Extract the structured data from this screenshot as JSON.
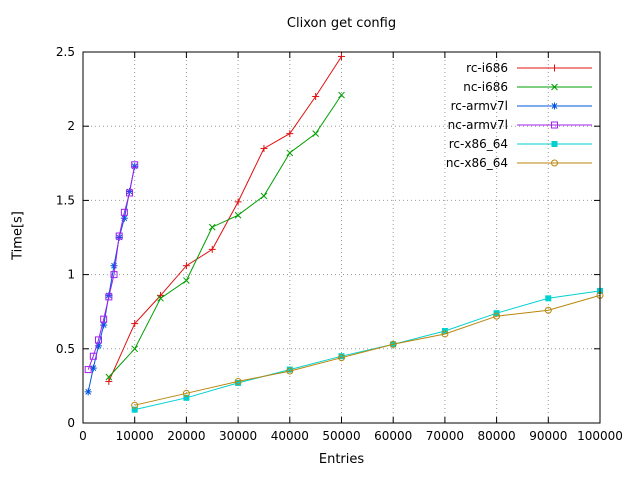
{
  "chart_data": {
    "type": "line",
    "title": "Clixon get config",
    "xlabel": "Entries",
    "ylabel": "Time[s]",
    "xlim": [
      0,
      100000
    ],
    "ylim": [
      0,
      2.5
    ],
    "xticks": [
      0,
      10000,
      20000,
      30000,
      40000,
      50000,
      60000,
      70000,
      80000,
      90000,
      100000
    ],
    "yticks": [
      0,
      0.5,
      1,
      1.5,
      2,
      2.5
    ],
    "grid": true,
    "legend_position": "top-right-inside",
    "series": [
      {
        "name": "rc-i686",
        "color": "#e01010",
        "marker": "plus",
        "x": [
          5000,
          10000,
          15000,
          20000,
          25000,
          30000,
          35000,
          40000,
          45000,
          50000
        ],
        "y": [
          0.28,
          0.67,
          0.86,
          1.06,
          1.17,
          1.49,
          1.85,
          1.95,
          2.2,
          2.47
        ]
      },
      {
        "name": "nc-i686",
        "color": "#009e00",
        "marker": "cross",
        "x": [
          5000,
          10000,
          15000,
          20000,
          25000,
          30000,
          35000,
          40000,
          45000,
          50000
        ],
        "y": [
          0.31,
          0.5,
          0.84,
          0.96,
          1.32,
          1.4,
          1.53,
          1.82,
          1.95,
          2.21
        ]
      },
      {
        "name": "rc-armv7l",
        "color": "#0055dd",
        "marker": "asterisk",
        "x": [
          1000,
          2000,
          3000,
          4000,
          5000,
          6000,
          7000,
          8000,
          9000,
          10000
        ],
        "y": [
          0.21,
          0.37,
          0.52,
          0.66,
          0.86,
          1.06,
          1.25,
          1.38,
          1.56,
          1.73
        ]
      },
      {
        "name": "nc-armv7l",
        "color": "#a020f0",
        "marker": "square-open",
        "x": [
          1000,
          2000,
          3000,
          4000,
          5000,
          6000,
          7000,
          8000,
          9000,
          10000
        ],
        "y": [
          0.36,
          0.45,
          0.56,
          0.7,
          0.85,
          1.0,
          1.26,
          1.42,
          1.55,
          1.74
        ]
      },
      {
        "name": "rc-x86_64",
        "color": "#00d0d0",
        "marker": "square-filled",
        "x": [
          10000,
          20000,
          30000,
          40000,
          50000,
          60000,
          70000,
          80000,
          90000,
          100000
        ],
        "y": [
          0.09,
          0.17,
          0.27,
          0.36,
          0.45,
          0.53,
          0.62,
          0.74,
          0.84,
          0.89
        ]
      },
      {
        "name": "nc-x86_64",
        "color": "#b8860b",
        "marker": "circle-open",
        "x": [
          10000,
          20000,
          30000,
          40000,
          50000,
          60000,
          70000,
          80000,
          90000,
          100000
        ],
        "y": [
          0.12,
          0.2,
          0.28,
          0.35,
          0.44,
          0.53,
          0.6,
          0.72,
          0.76,
          0.86
        ]
      }
    ]
  }
}
